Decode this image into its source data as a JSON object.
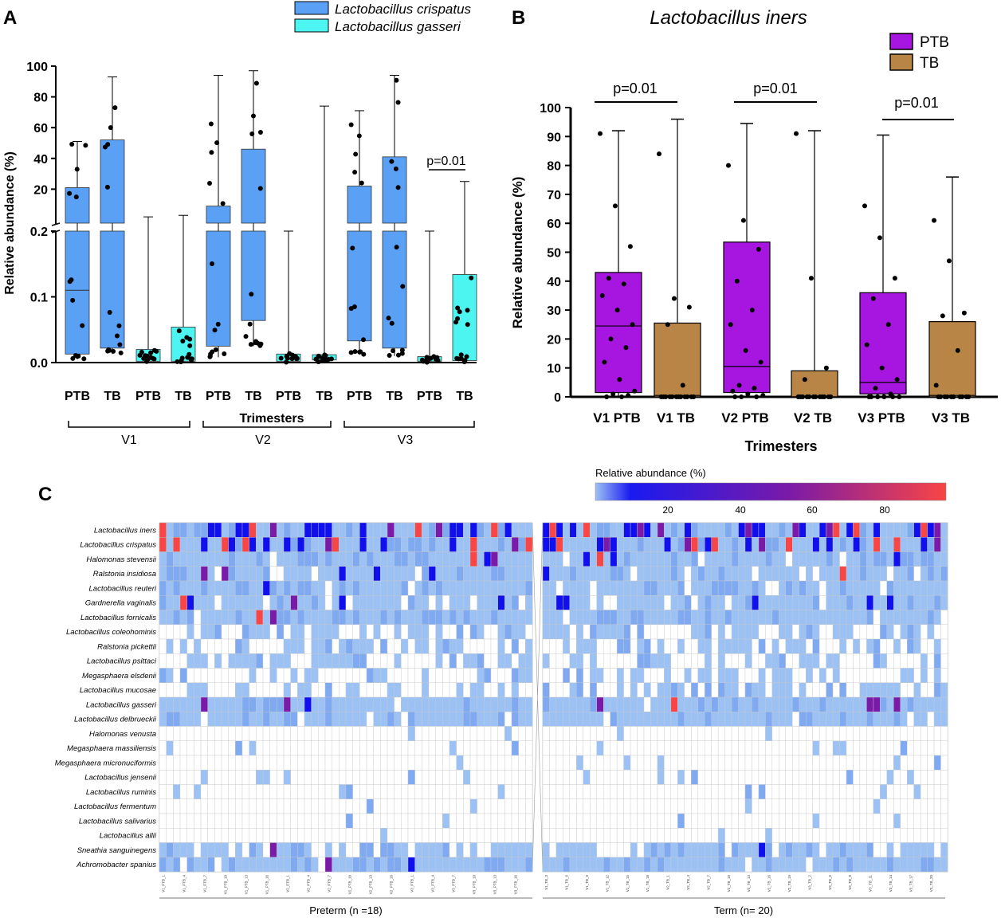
{
  "panel_labels": {
    "a": "A",
    "b": "B",
    "c": "C"
  },
  "colors": {
    "crispatus": "#5aa0f5",
    "gasseri": "#4df5f0",
    "ptb": "#a716e0",
    "tb": "#b88546",
    "heat_low": "#9cc2f5",
    "heat_mid": "#1010ee",
    "heat_high": "#f84545"
  },
  "chart_data": [
    {
      "id": "A",
      "type": "box",
      "legend": [
        "Lactobacillus crispatus",
        "Lactobacillus gasseri"
      ],
      "ylabel": "Relative abundance (%)",
      "xlabel": "Trimesters",
      "yticks_upper": [
        "100",
        "80",
        "60",
        "40",
        "20"
      ],
      "yticks_lower": [
        "0.2",
        "0.1",
        "0.0"
      ],
      "categories": [
        "PTB",
        "TB",
        "PTB",
        "TB",
        "PTB",
        "TB",
        "PTB",
        "TB",
        "PTB",
        "TB",
        "PTB",
        "TB"
      ],
      "groups": [
        "V1",
        "V2",
        "V3"
      ],
      "annotation": "p=0.01",
      "boxes": [
        {
          "species": "crispatus",
          "q1": 0.013,
          "median": 0.11,
          "q3": 21,
          "min": 0.005,
          "max": 51
        },
        {
          "species": "crispatus",
          "q1": 0.022,
          "median": null,
          "q3": 52,
          "min": 0.013,
          "max": 93
        },
        {
          "species": "gasseri",
          "q1": 0.002,
          "median": null,
          "q3": 0.02,
          "min": 0.001,
          "max": 0.5
        },
        {
          "species": "gasseri",
          "q1": 0.002,
          "median": null,
          "q3": 0.054,
          "min": 0.001,
          "max": 3
        },
        {
          "species": "crispatus",
          "q1": 0.025,
          "median": null,
          "q3": 9,
          "min": 0.008,
          "max": 94
        },
        {
          "species": "crispatus",
          "q1": 0.064,
          "median": null,
          "q3": 46,
          "min": 0.025,
          "max": 97
        },
        {
          "species": "gasseri",
          "q1": 0.002,
          "median": null,
          "q3": 0.013,
          "min": 0.001,
          "max": 0.2
        },
        {
          "species": "gasseri",
          "q1": 0.004,
          "median": null,
          "q3": 0.012,
          "min": 0.002,
          "max": 74
        },
        {
          "species": "crispatus",
          "q1": 0.033,
          "median": null,
          "q3": 22,
          "min": 0.012,
          "max": 71
        },
        {
          "species": "crispatus",
          "q1": 0.022,
          "median": null,
          "q3": 41,
          "min": 0.01,
          "max": 94
        },
        {
          "species": "gasseri",
          "q1": 0.002,
          "median": null,
          "q3": 0.009,
          "min": 0.001,
          "max": 0.2
        },
        {
          "species": "gasseri",
          "q1": 0.003,
          "median": null,
          "q3": 0.134,
          "min": 0.001,
          "max": 25
        }
      ]
    },
    {
      "id": "B",
      "type": "box",
      "title": "Lactobacillus iners",
      "legend": [
        "PTB",
        "TB"
      ],
      "ylabel": "Relative abundance (%)",
      "xlabel": "Trimesters",
      "ylim": [
        0,
        100
      ],
      "yticks": [
        "100",
        "90",
        "80",
        "70",
        "60",
        "50",
        "40",
        "30",
        "20",
        "10",
        "0"
      ],
      "categories": [
        "V1 PTB",
        "V1 TB",
        "V2 PTB",
        "V2 TB",
        "V3 PTB",
        "V3 TB"
      ],
      "pvalues": [
        "p=0.01",
        "p=0.01",
        "p=0.01"
      ],
      "boxes": [
        {
          "group": "PTB",
          "q1": 1.5,
          "median": 24.5,
          "q3": 43,
          "min": 0,
          "max": 92,
          "points": [
            91,
            66,
            52,
            41,
            39,
            35,
            30,
            25,
            20,
            17,
            12,
            6,
            2,
            1,
            0.5,
            0,
            0
          ]
        },
        {
          "group": "TB",
          "q1": 0,
          "median": 0.5,
          "q3": 25.5,
          "min": 0,
          "max": 96,
          "points": [
            84,
            34,
            31,
            25,
            4,
            0,
            0,
            0,
            0,
            0,
            0,
            0,
            0,
            0,
            0,
            0,
            0
          ]
        },
        {
          "group": "PTB",
          "q1": 1.5,
          "median": 10.5,
          "q3": 53.5,
          "min": 0,
          "max": 94.5,
          "points": [
            80,
            61,
            51,
            40,
            30,
            25,
            16,
            12,
            4,
            3,
            2,
            1,
            0.5,
            0,
            0,
            0
          ]
        },
        {
          "group": "TB",
          "q1": 0,
          "median": 0,
          "q3": 9,
          "min": 0,
          "max": 92,
          "points": [
            91,
            41,
            10,
            6,
            0,
            0,
            0,
            0,
            0,
            0,
            0,
            0,
            0,
            0,
            0,
            0
          ]
        },
        {
          "group": "PTB",
          "q1": 1,
          "median": 5,
          "q3": 36,
          "min": 0,
          "max": 90.5,
          "points": [
            66,
            55,
            41,
            34,
            25,
            18,
            10,
            6,
            3,
            1,
            0,
            0,
            0,
            0,
            0,
            0
          ]
        },
        {
          "group": "TB",
          "q1": 0,
          "median": 0.5,
          "q3": 26,
          "min": 0,
          "max": 76,
          "points": [
            61,
            47,
            29,
            28,
            16,
            4,
            0,
            0,
            0,
            0,
            0,
            0,
            0,
            0,
            0,
            0
          ]
        }
      ]
    },
    {
      "id": "C",
      "type": "heatmap",
      "colorbar_label": "Relative abundance (%)",
      "colorbar_ticks": [
        "20",
        "40",
        "60",
        "80"
      ],
      "groups": [
        "Preterm (n =18)",
        "Term (n= 20)"
      ],
      "rows": [
        "Lactobacillus iners",
        "Lactobacillus crispatus",
        "Halomonas stevensii",
        "Ralstonia insidiosa",
        "Lactobacillus reuteri",
        "Gardnerella vaginalis",
        "Lactobacillus fornicalis",
        "Lactobacillus coleohominis",
        "Ralstonia pickettii",
        "Lactobacillus psittaci",
        "Megasphaera elsdenii",
        "Lactobacillus mucosae",
        "Lactobacillus gasseri",
        "Lactobacillus delbrueckii",
        "Halomonas venusta",
        "Megasphaera massiliensis",
        "Megasphaera micronuciformis",
        "Lactobacillus jensenii",
        "Lactobacillus ruminis",
        "Lactobacillus fermentum",
        "Lactobacillus salivarius",
        "Lactobacillus allii",
        "Sneathia sanguinegens",
        "Achromobacter spanius"
      ],
      "column_labels_left": [
        "V1_PTB_1",
        "V1_PTB_4",
        "V1_PTB_7",
        "V1_PTB_10",
        "V1_PTB_13",
        "V1_PTB_16",
        "V2_PTB_1",
        "V2_PTB_4",
        "V2_PTB_7",
        "V2_PTB_10",
        "V2_PTB_13",
        "V2_PTB_16",
        "V3_PTB_1",
        "V3_PTB_4",
        "V3_PTB_7",
        "V3_PTB_10",
        "V3_PTB_13",
        "V3_PTB_16"
      ],
      "column_labels_right": [
        "V1_TB_3",
        "V1_TB_6",
        "V1_TB_9",
        "V1_TB_12",
        "V1_TB_15",
        "V1_TB_18",
        "V2_TB_1",
        "V2_TB_4",
        "V2_TB_7",
        "V2_TB_10",
        "V2_TB_13",
        "V2_TB_16",
        "V2_TB_19",
        "V3_TB_2",
        "V3_TB_5",
        "V3_TB_8",
        "V3_TB_11",
        "V3_TB_14",
        "V3_TB_17",
        "V3_TB_20"
      ],
      "n_left": 54,
      "n_right": 60
    }
  ]
}
